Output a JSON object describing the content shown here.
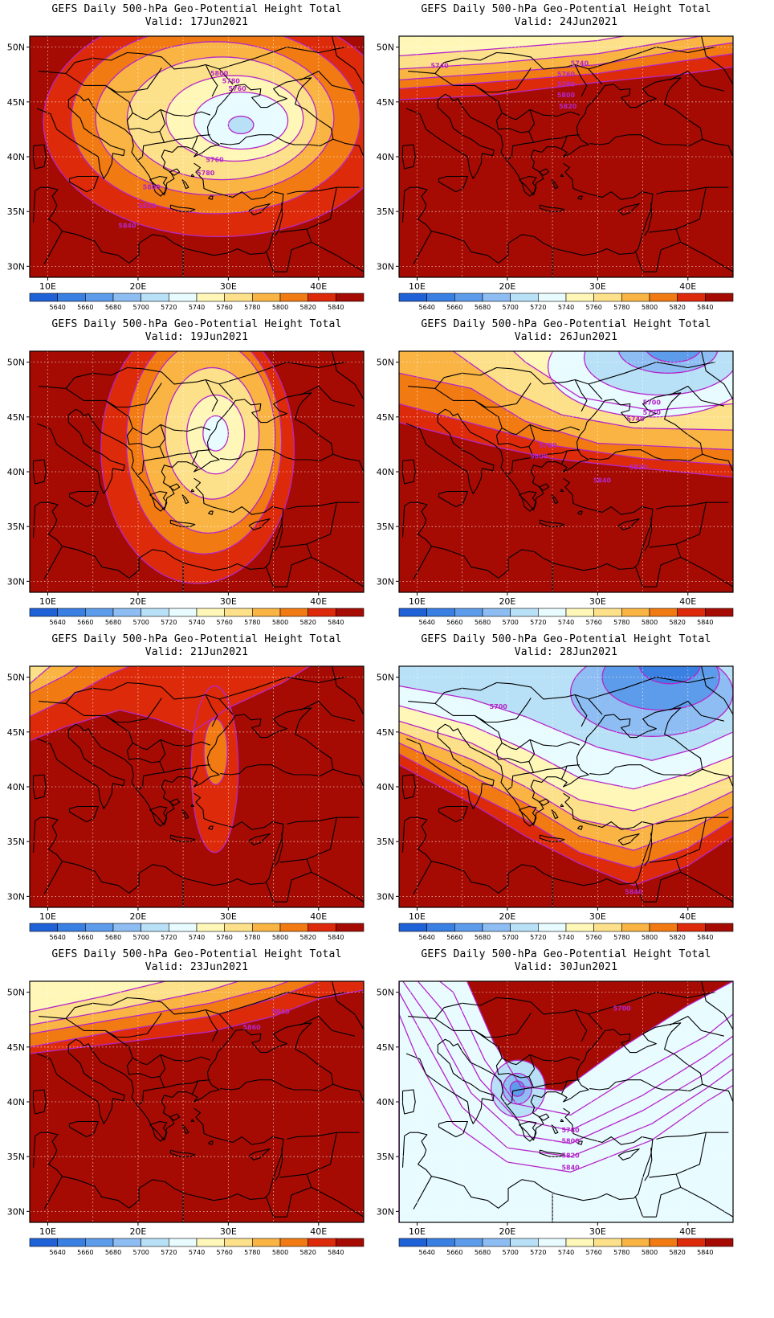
{
  "title": "GEFS Daily 500-hPa Geo-Potential Height Total",
  "lat_labels": [
    "50N",
    "45N",
    "40N",
    "35N",
    "30N"
  ],
  "lon_labels": [
    "10E",
    "20E",
    "30E",
    "40E"
  ],
  "colorbar": {
    "labels": [
      "5640",
      "5660",
      "5680",
      "5700",
      "5720",
      "5740",
      "5760",
      "5780",
      "5800",
      "5820",
      "5840"
    ],
    "colors": [
      "#1f62d8",
      "#3a7fe2",
      "#5d9ceb",
      "#8dbdf2",
      "#b8e0f7",
      "#e8fbff",
      "#fff7b8",
      "#fde08a",
      "#f9b444",
      "#f27a12",
      "#dd2a0a",
      "#a50b02"
    ]
  },
  "panels": [
    {
      "valid": "Valid: 17Jun2021",
      "contours": [
        {
          "t": "5800",
          "lon": 29,
          "lat": 47.6
        },
        {
          "t": "5780",
          "lon": 30.3,
          "lat": 46.9
        },
        {
          "t": "5760",
          "lon": 31,
          "lat": 46.2
        },
        {
          "t": "5760",
          "lon": 28.5,
          "lat": 39.7
        },
        {
          "t": "5780",
          "lon": 27.5,
          "lat": 38.5
        },
        {
          "t": "5800",
          "lon": 21.5,
          "lat": 37.2
        },
        {
          "t": "5820",
          "lon": 21,
          "lat": 35.5
        },
        {
          "t": "5840",
          "lon": 18.8,
          "lat": 33.7
        }
      ]
    },
    {
      "valid": "Valid: 24Jun2021",
      "contours": [
        {
          "t": "5740",
          "lon": 12.5,
          "lat": 48.3
        },
        {
          "t": "5740",
          "lon": 28,
          "lat": 48.5
        },
        {
          "t": "5760",
          "lon": 26.5,
          "lat": 47.5
        },
        {
          "t": "5780",
          "lon": 26.5,
          "lat": 46.6
        },
        {
          "t": "5800",
          "lon": 26.5,
          "lat": 45.6
        },
        {
          "t": "5820",
          "lon": 26.7,
          "lat": 44.6
        }
      ]
    },
    {
      "valid": "Valid: 19Jun2021",
      "contours": []
    },
    {
      "valid": "Valid: 26Jun2021",
      "contours": [
        {
          "t": "5700",
          "lon": 36,
          "lat": 46.3
        },
        {
          "t": "5720",
          "lon": 36,
          "lat": 45.4
        },
        {
          "t": "5740",
          "lon": 34.2,
          "lat": 44.8
        },
        {
          "t": "5780",
          "lon": 24.5,
          "lat": 42.4
        },
        {
          "t": "5800",
          "lon": 23.5,
          "lat": 41.4
        },
        {
          "t": "5820",
          "lon": 34.5,
          "lat": 40.4
        },
        {
          "t": "5840",
          "lon": 30.5,
          "lat": 39.2
        }
      ]
    },
    {
      "valid": "Valid: 21Jun2021",
      "contours": []
    },
    {
      "valid": "Valid: 28Jun2021",
      "contours": [
        {
          "t": "5700",
          "lon": 19,
          "lat": 47.3
        },
        {
          "t": "5840",
          "lon": 34,
          "lat": 30.4
        }
      ]
    },
    {
      "valid": "Valid: 23Jun2021",
      "contours": [
        {
          "t": "5840",
          "lon": 35.8,
          "lat": 48.2
        },
        {
          "t": "5860",
          "lon": 32.6,
          "lat": 46.8
        }
      ]
    },
    {
      "valid": "Valid: 30Jun2021",
      "contours": [
        {
          "t": "5700",
          "lon": 32.7,
          "lat": 48.5
        },
        {
          "t": "5780",
          "lon": 27,
          "lat": 37.4
        },
        {
          "t": "5800",
          "lon": 27,
          "lat": 36.4
        },
        {
          "t": "5820",
          "lon": 27,
          "lat": 35.1
        },
        {
          "t": "5840",
          "lon": 27,
          "lat": 34
        }
      ]
    }
  ]
}
